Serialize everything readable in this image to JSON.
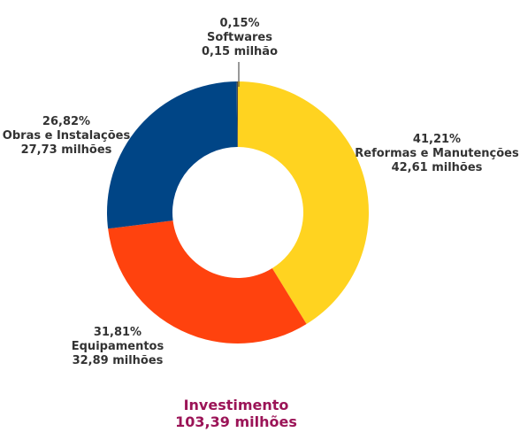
{
  "chart_data": {
    "type": "pie",
    "variant": "donut",
    "slices": [
      {
        "label": "Reformas e Manutenções",
        "percent": 41.21,
        "pct_text": "41,21%",
        "value_text": "42,61 milhões",
        "value": 42.61,
        "color": "#FFD320"
      },
      {
        "label": "Equipamentos",
        "percent": 31.81,
        "pct_text": "31,81%",
        "value_text": "32,89 milhões",
        "value": 32.89,
        "color": "#FF420E"
      },
      {
        "label": "Obras e Instalações",
        "percent": 26.82,
        "pct_text": "26,82%",
        "value_text": "27,73 milhões",
        "value": 27.73,
        "color": "#004586"
      },
      {
        "label": "Softwares",
        "percent": 0.15,
        "pct_text": "0,15%",
        "value_text": "0,15 milhão",
        "value": 0.15,
        "color": "#4A4A4A"
      }
    ],
    "total": {
      "title": "Investimento",
      "value_text": "103,39 milhões",
      "color": "#9B1457"
    },
    "label_color": "#333333"
  }
}
